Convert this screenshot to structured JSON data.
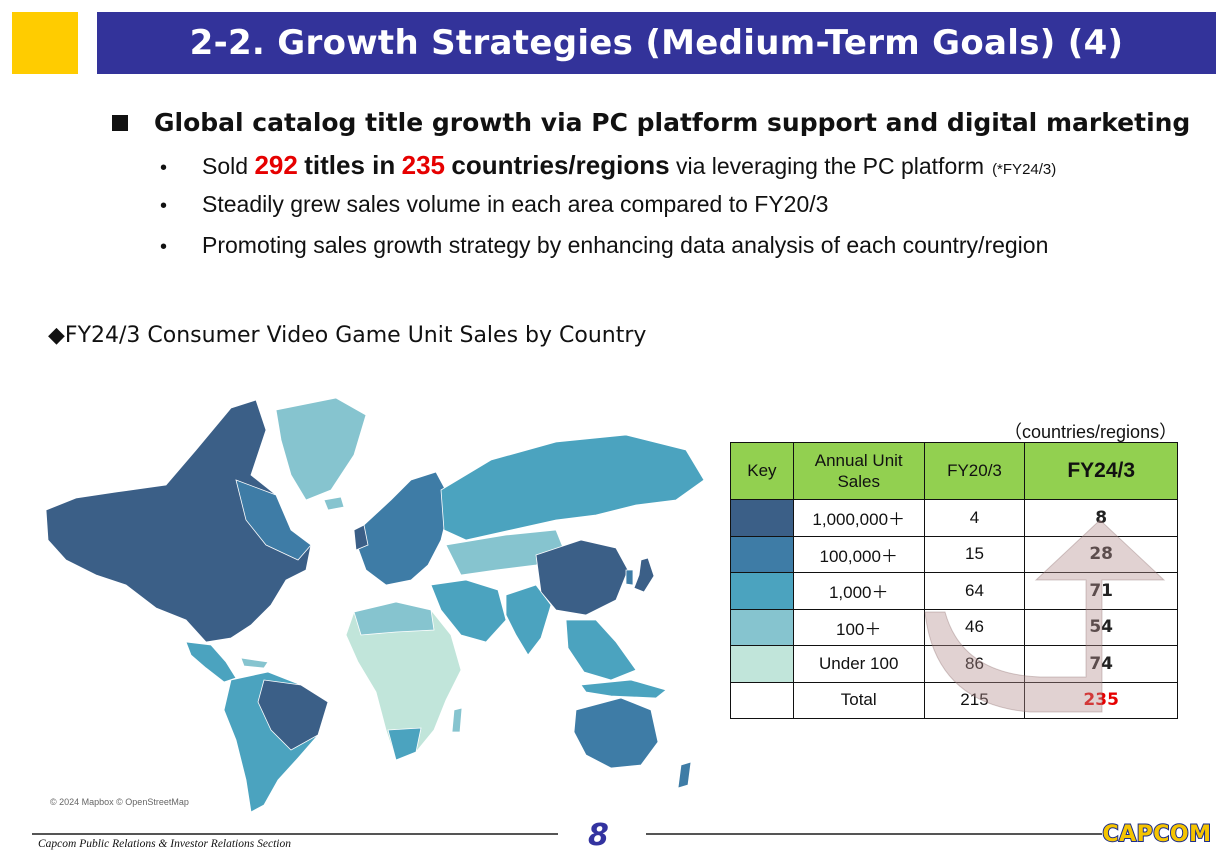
{
  "title": "2-2. Growth Strategies (Medium-Term Goals) (4)",
  "heading": "Global catalog title growth via PC platform support and digital marketing",
  "bullets": {
    "b1": {
      "sold": "Sold",
      "num_titles": "292",
      "titles_in": "titles in",
      "num_countries": "235",
      "countries": "countries/regions",
      "via": "via leveraging the PC platform",
      "note": "(*FY24/3)"
    },
    "b2": "Steadily grew sales volume in each area compared to FY20/3",
    "b3": "Promoting sales growth strategy by enhancing data analysis of each country/region"
  },
  "map": {
    "title": "◆FY24/3 Consumer Video Game Unit Sales by Country",
    "credit": "© 2024 Mapbox © OpenStreetMap"
  },
  "table": {
    "unit_note": "（countries/regions）",
    "headers": {
      "key": "Key",
      "units": "Annual Unit Sales",
      "fy20": "FY20/3",
      "fy24": "FY24/3"
    },
    "rows": [
      {
        "color": "#3b5f87",
        "label": "1,000,000＋",
        "fy20": "4",
        "fy24": "8"
      },
      {
        "color": "#3e7ca6",
        "label": "100,000＋",
        "fy20": "15",
        "fy24": "28"
      },
      {
        "color": "#4ba3bf",
        "label": "1,000＋",
        "fy20": "64",
        "fy24": "71"
      },
      {
        "color": "#86c4cf",
        "label": "100＋",
        "fy20": "46",
        "fy24": "54"
      },
      {
        "color": "#c1e5da",
        "label": "Under 100",
        "fy20": "86",
        "fy24": "74"
      }
    ],
    "total": {
      "label": "Total",
      "fy20": "215",
      "fy24": "235"
    }
  },
  "footer": {
    "text": "Capcom Public Relations & Investor Relations Section",
    "page": "8",
    "logo": "CAPCOM"
  }
}
